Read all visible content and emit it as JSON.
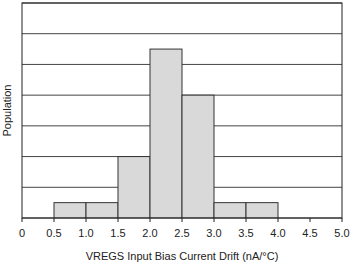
{
  "chart_data": {
    "type": "histogram",
    "x_label": "VREGS Input Bias Current Drift (nA/°C)",
    "y_label": "Population",
    "bins": [
      0.5,
      1.0,
      1.5,
      2.0,
      2.5,
      3.0,
      3.5,
      4.0
    ],
    "values": [
      1,
      1,
      4,
      11,
      8,
      1,
      1
    ],
    "color": "#d9d9d9",
    "xlim": [
      0,
      5
    ],
    "xticks": [
      0,
      0.5,
      {
        "value": 1,
        "label": "1.0"
      },
      1.5,
      {
        "value": 2,
        "label": "2.0"
      },
      2.5,
      {
        "value": 3,
        "label": "3.0"
      },
      3.5,
      {
        "value": 4,
        "label": "4.0"
      },
      4.5,
      {
        "value": 5,
        "label": "5.0"
      }
    ],
    "ylim": [
      0,
      14
    ],
    "yticks": [
      0,
      2,
      4,
      6,
      8,
      10,
      12,
      14
    ],
    "grid": true,
    "tick_labels": "x"
  }
}
